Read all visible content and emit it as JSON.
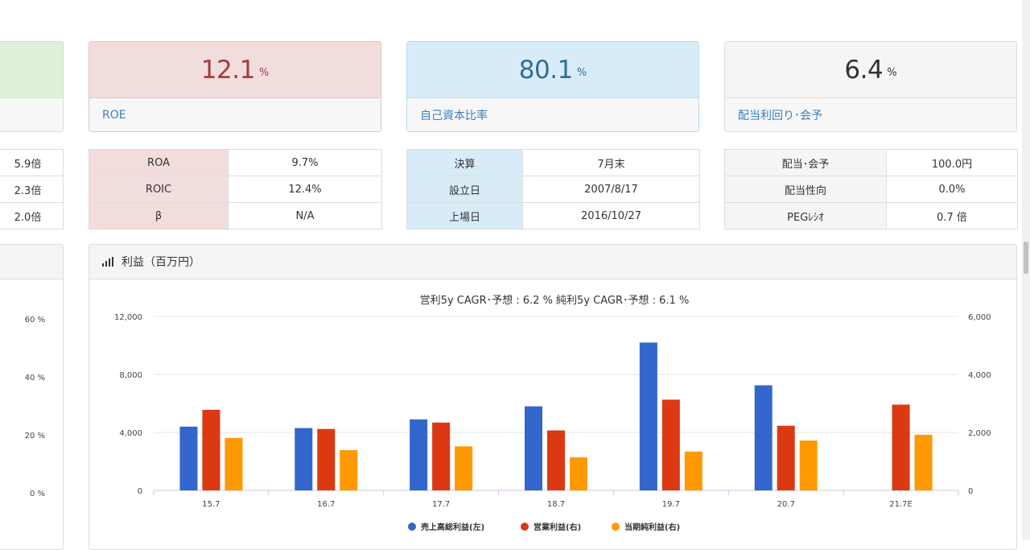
{
  "cards": [
    {
      "value": "12.1",
      "unit": "%",
      "label": "ROE"
    },
    {
      "value": "80.1",
      "unit": "%",
      "label": "自己資本比率"
    },
    {
      "value": "6.4",
      "unit": "%",
      "label": "配当利回り･会予"
    }
  ],
  "left_table": [
    "5.9倍",
    "2.3倍",
    "2.0倍"
  ],
  "tables": [
    [
      [
        "ROA",
        "9.7%"
      ],
      [
        "ROIC",
        "12.4%"
      ],
      [
        "β",
        "N/A"
      ]
    ],
    [
      [
        "決算",
        "7月末"
      ],
      [
        "設立日",
        "2007/8/17"
      ],
      [
        "上場日",
        "2016/10/27"
      ]
    ],
    [
      [
        "配当･会予",
        "100.0円"
      ],
      [
        "配当性向",
        "0.0%"
      ],
      [
        "PEGﾚｼｵ",
        "0.7 倍"
      ]
    ]
  ],
  "left_chart_ticks": [
    "60 %",
    "40 %",
    "20 %",
    "0 %"
  ],
  "panel_title": "利益（百万円）",
  "chart_data": {
    "type": "bar",
    "title": "営利5y CAGR･予想 : 6.2 %  純利5y CAGR･予想 : 6.1 %",
    "categories": [
      "15.7",
      "16.7",
      "17.7",
      "18.7",
      "19.7",
      "20.7",
      "21.7E"
    ],
    "series": [
      {
        "name": "売上高総利益(左)",
        "axis": "left",
        "color": "#3366cc",
        "values": [
          4400,
          4300,
          4900,
          5800,
          10200,
          7250,
          null
        ]
      },
      {
        "name": "営業利益(右)",
        "axis": "right",
        "color": "#dc3912",
        "values": [
          2780,
          2120,
          2340,
          2070,
          3130,
          2230,
          2960
        ]
      },
      {
        "name": "当期純利益(右)",
        "axis": "right",
        "color": "#ff9900",
        "values": [
          1810,
          1390,
          1520,
          1140,
          1340,
          1720,
          1920
        ]
      }
    ],
    "yleft": {
      "min": 0,
      "max": 12000,
      "ticks": [
        "0",
        "4,000",
        "8,000",
        "12,000"
      ]
    },
    "yright": {
      "min": 0,
      "max": 6000,
      "ticks": [
        "0",
        "2,000",
        "4,000",
        "6,000"
      ]
    }
  }
}
